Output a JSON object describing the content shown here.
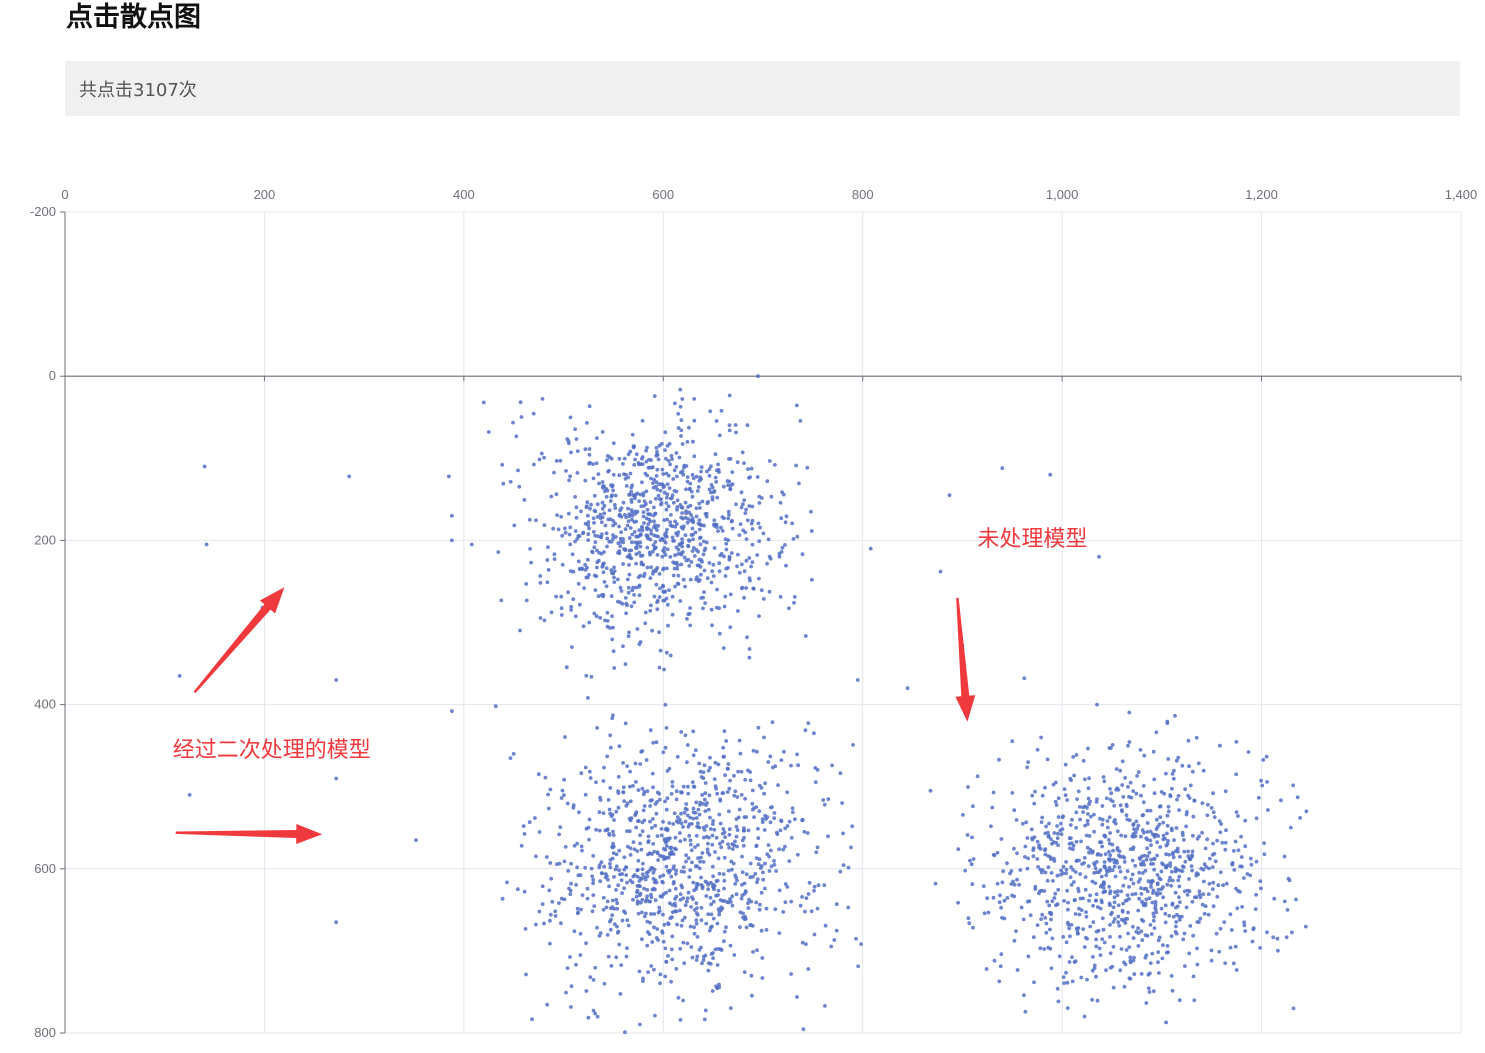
{
  "header": {
    "title": "点击散点图",
    "summary": "共点击3107次"
  },
  "chart_data": {
    "type": "scatter",
    "xlim": [
      0,
      1400
    ],
    "ylim": [
      -200,
      800
    ],
    "y_inverted": true,
    "x_axis_position": "top",
    "x_ticks": [
      "0",
      "200",
      "400",
      "600",
      "800",
      "1,000",
      "1,200",
      "1,400"
    ],
    "y_ticks": [
      "-200",
      "0",
      "200",
      "400",
      "600",
      "800"
    ],
    "grid": true,
    "point_color": "#5470c6",
    "approx_point_count": 3107,
    "clusters": [
      {
        "center": [
          590,
          185
        ],
        "spread": [
          62,
          65
        ],
        "count": 950
      },
      {
        "center": [
          620,
          590
        ],
        "spread": [
          72,
          78
        ],
        "count": 1000
      },
      {
        "center": [
          1070,
          600
        ],
        "spread": [
          70,
          68
        ],
        "count": 960
      }
    ],
    "outliers": [
      [
        140,
        110
      ],
      [
        142,
        205
      ],
      [
        115,
        365
      ],
      [
        125,
        510
      ],
      [
        198,
        282
      ],
      [
        285,
        122
      ],
      [
        272,
        370
      ],
      [
        272,
        490
      ],
      [
        272,
        665
      ],
      [
        385,
        122
      ],
      [
        388,
        170
      ],
      [
        388,
        200
      ],
      [
        388,
        408
      ],
      [
        408,
        205
      ],
      [
        420,
        32
      ],
      [
        425,
        68
      ],
      [
        432,
        402
      ],
      [
        450,
        460
      ],
      [
        460,
        548
      ],
      [
        458,
        572
      ],
      [
        352,
        565
      ],
      [
        695,
        0
      ],
      [
        748,
        165
      ],
      [
        808,
        210
      ],
      [
        795,
        370
      ],
      [
        845,
        380
      ],
      [
        887,
        145
      ],
      [
        878,
        238
      ],
      [
        900,
        328
      ],
      [
        868,
        505
      ],
      [
        873,
        618
      ],
      [
        940,
        112
      ],
      [
        962,
        368
      ],
      [
        988,
        120
      ],
      [
        1037,
        220
      ],
      [
        1035,
        400
      ],
      [
        1223,
        585
      ],
      [
        1226,
        650
      ],
      [
        1245,
        530
      ],
      [
        1227,
        612
      ],
      [
        1232,
        770
      ]
    ],
    "annotations": [
      {
        "text": "经过二次处理的模型",
        "x": 108,
        "y": 464,
        "arrow_from": [
          130,
          385
        ],
        "arrow_to": [
          220,
          257
        ]
      },
      {
        "text": "未处理模型",
        "x": 915,
        "y": 207
      },
      {
        "arrow_from": [
          111,
          556
        ],
        "arrow_to": [
          258,
          558
        ]
      },
      {
        "arrow_from": [
          895,
          270
        ],
        "arrow_to": [
          905,
          421
        ]
      }
    ]
  }
}
